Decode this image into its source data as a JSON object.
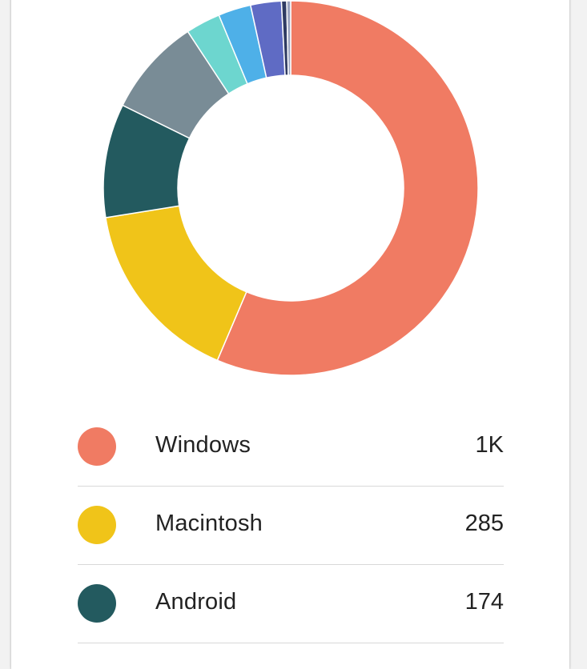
{
  "chart_data": {
    "type": "pie",
    "donut": true,
    "slices": [
      {
        "label": "Windows",
        "value": 1000,
        "display": "1K",
        "color": "#f07b63"
      },
      {
        "label": "Macintosh",
        "value": 285,
        "display": "285",
        "color": "#f0c419"
      },
      {
        "label": "Android",
        "value": 174,
        "display": "174",
        "color": "#235a5f"
      },
      {
        "label": "",
        "value": 150,
        "color": "#798c96"
      },
      {
        "label": "",
        "value": 53,
        "color": "#6dd6cf"
      },
      {
        "label": "",
        "value": 50,
        "color": "#4eb0e8"
      },
      {
        "label": "",
        "value": 47,
        "color": "#5f6bc4"
      },
      {
        "label": "",
        "value": 8,
        "color": "#2f3b63"
      },
      {
        "label": "",
        "value": 6,
        "color": "#9aa3bf"
      }
    ]
  }
}
